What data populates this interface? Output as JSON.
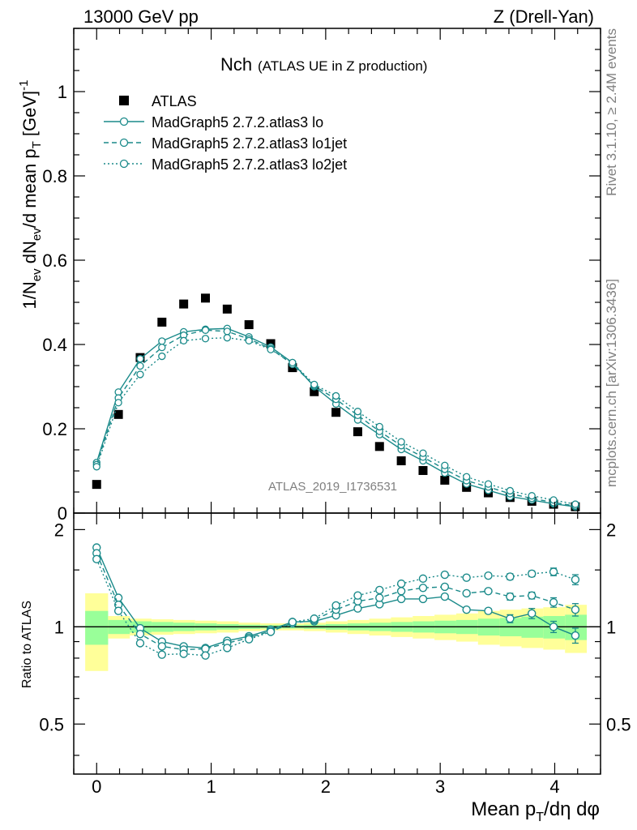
{
  "header": {
    "left": "13000 GeV pp",
    "right": "Z (Drell-Yan)"
  },
  "side_labels": {
    "rivet": "Rivet 3.1.10, ≥ 2.4M events",
    "mcplots": "mcplots.cern.ch [arXiv:1306.3436]"
  },
  "watermark": "ATLAS_2019_I1736531",
  "colors": {
    "mc": "#1a8a8a",
    "band_inner": "#99ff99",
    "band_outer": "#ffff99"
  },
  "chart_data": [
    {
      "type": "scatter",
      "panel": "main",
      "title": "Nch",
      "subtitle": "(ATLAS UE in Z production)",
      "ylabel": "1/N_ev dN_ev/d mean p_T [GeV]^-1",
      "xlim": [
        -0.2,
        4.4
      ],
      "ylim": [
        0,
        1.15
      ],
      "yticks": [
        "0",
        "0.2",
        "0.4",
        "0.6",
        "0.8",
        "1"
      ],
      "legend_position": "top-left",
      "x": [
        0.0,
        0.19,
        0.38,
        0.57,
        0.76,
        0.95,
        1.14,
        1.33,
        1.52,
        1.71,
        1.9,
        2.09,
        2.28,
        2.47,
        2.66,
        2.85,
        3.04,
        3.23,
        3.42,
        3.61,
        3.8,
        3.99,
        4.18
      ],
      "series": [
        {
          "name": "ATLAS",
          "style": "square",
          "values": [
            0.068,
            0.234,
            0.369,
            0.453,
            0.496,
            0.51,
            0.484,
            0.447,
            0.402,
            0.345,
            0.288,
            0.239,
            0.193,
            0.158,
            0.124,
            0.101,
            0.078,
            0.061,
            0.048,
            0.037,
            0.028,
            0.021,
            0.015
          ]
        },
        {
          "name": "MadGraph5 2.7.2.atlas3 lo",
          "style": "solid",
          "values": [
            0.12,
            0.287,
            0.366,
            0.408,
            0.43,
            0.436,
            0.438,
            0.418,
            0.394,
            0.357,
            0.3,
            0.259,
            0.221,
            0.186,
            0.151,
            0.124,
            0.095,
            0.069,
            0.054,
            0.039,
            0.031,
            0.022,
            0.015
          ]
        },
        {
          "name": "MadGraph5 2.7.2.atlas3 lo1jet",
          "style": "dashed",
          "values": [
            0.115,
            0.273,
            0.349,
            0.393,
            0.422,
            0.434,
            0.431,
            0.413,
            0.39,
            0.353,
            0.302,
            0.27,
            0.232,
            0.194,
            0.16,
            0.133,
            0.104,
            0.077,
            0.062,
            0.046,
            0.035,
            0.025,
            0.017
          ]
        },
        {
          "name": "MadGraph5 2.7.2.atlas3 lo2jet",
          "style": "dotted",
          "values": [
            0.11,
            0.262,
            0.329,
            0.372,
            0.409,
            0.414,
            0.416,
            0.409,
            0.388,
            0.357,
            0.305,
            0.278,
            0.241,
            0.205,
            0.169,
            0.142,
            0.113,
            0.086,
            0.069,
            0.053,
            0.041,
            0.031,
            0.021
          ]
        }
      ]
    },
    {
      "type": "line",
      "panel": "ratio",
      "ylabel": "Ratio to ATLAS",
      "xlabel": "Mean p_T/dη dφ",
      "xlim": [
        -0.2,
        4.4
      ],
      "ylim": [
        0.35,
        2.25
      ],
      "log_y": true,
      "yticks": [
        "0.5",
        "1",
        "2"
      ],
      "xticks": [
        "0",
        "1",
        "2",
        "3",
        "4"
      ],
      "x": [
        0.0,
        0.19,
        0.38,
        0.57,
        0.76,
        0.95,
        1.14,
        1.33,
        1.52,
        1.71,
        1.9,
        2.09,
        2.28,
        2.47,
        2.66,
        2.85,
        3.04,
        3.23,
        3.42,
        3.61,
        3.8,
        3.99,
        4.18
      ],
      "band_edges": [
        -0.1,
        0.1,
        0.29,
        0.48,
        0.67,
        0.86,
        1.05,
        1.24,
        1.43,
        1.62,
        1.81,
        2.0,
        2.19,
        2.38,
        2.57,
        2.76,
        2.95,
        3.14,
        3.33,
        3.52,
        3.71,
        3.9,
        4.09,
        4.28
      ],
      "band_inner": [
        0.12,
        0.05,
        0.04,
        0.035,
        0.03,
        0.025,
        0.02,
        0.015,
        0.012,
        0.012,
        0.015,
        0.02,
        0.025,
        0.03,
        0.035,
        0.04,
        0.045,
        0.05,
        0.06,
        0.065,
        0.075,
        0.08,
        0.09
      ],
      "band_outer": [
        0.27,
        0.08,
        0.06,
        0.055,
        0.05,
        0.045,
        0.04,
        0.03,
        0.025,
        0.025,
        0.03,
        0.04,
        0.05,
        0.06,
        0.07,
        0.08,
        0.09,
        0.1,
        0.12,
        0.13,
        0.14,
        0.15,
        0.17
      ],
      "series": [
        {
          "name": "MadGraph5 2.7.2.atlas3 lo",
          "style": "solid",
          "values": [
            1.76,
            1.23,
            0.99,
            0.9,
            0.87,
            0.86,
            0.905,
            0.935,
            0.98,
            1.035,
            1.04,
            1.085,
            1.14,
            1.175,
            1.22,
            1.22,
            1.24,
            1.13,
            1.12,
            1.06,
            1.1,
            1.0,
            0.94
          ],
          "errors": [
            0,
            0,
            0,
            0,
            0,
            0,
            0,
            0,
            0,
            0,
            0,
            0,
            0,
            0,
            0,
            0,
            0,
            0,
            0.02,
            0.03,
            0.04,
            0.04,
            0.05
          ]
        },
        {
          "name": "MadGraph5 2.7.2.atlas3 lo1jet",
          "style": "dashed",
          "values": [
            1.69,
            1.17,
            0.95,
            0.87,
            0.85,
            0.855,
            0.89,
            0.925,
            0.97,
            1.025,
            1.05,
            1.13,
            1.2,
            1.23,
            1.29,
            1.32,
            1.33,
            1.27,
            1.29,
            1.24,
            1.25,
            1.19,
            1.13
          ],
          "errors": [
            0,
            0,
            0,
            0,
            0,
            0,
            0,
            0,
            0,
            0,
            0,
            0,
            0,
            0,
            0,
            0,
            0,
            0,
            0.02,
            0.03,
            0.03,
            0.04,
            0.05
          ]
        },
        {
          "name": "MadGraph5 2.7.2.atlas3 lo2jet",
          "style": "dotted",
          "values": [
            1.62,
            1.12,
            0.89,
            0.82,
            0.825,
            0.815,
            0.86,
            0.915,
            0.965,
            1.035,
            1.06,
            1.165,
            1.25,
            1.3,
            1.36,
            1.41,
            1.45,
            1.42,
            1.44,
            1.43,
            1.46,
            1.48,
            1.4
          ],
          "errors": [
            0,
            0,
            0,
            0,
            0,
            0,
            0,
            0,
            0,
            0,
            0,
            0,
            0,
            0,
            0,
            0,
            0,
            0.02,
            0.02,
            0.03,
            0.03,
            0.04,
            0.05
          ]
        }
      ]
    }
  ]
}
